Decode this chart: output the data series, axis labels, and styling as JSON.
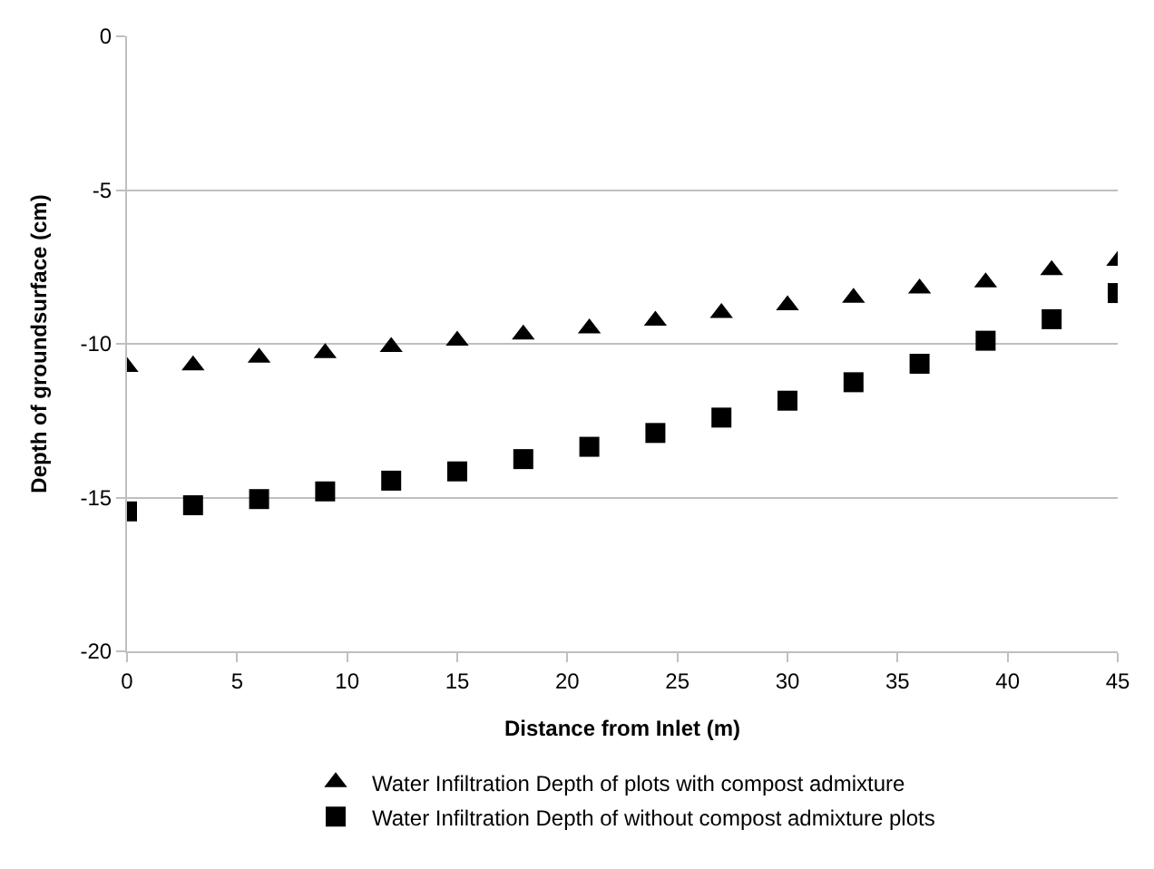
{
  "chart_data": {
    "type": "scatter",
    "xlabel": "Distance from Inlet (m)",
    "ylabel": "Depth of groundsurface (cm)",
    "x": [
      0,
      3,
      6,
      9,
      12,
      15,
      18,
      21,
      24,
      27,
      30,
      33,
      36,
      39,
      42,
      45
    ],
    "series": [
      {
        "name": "Water Infiltration Depth of plots with compost admixture",
        "color": "#000000",
        "marker": "triangle",
        "values": [
          -10.75,
          -10.7,
          -10.45,
          -10.3,
          -10.1,
          -9.9,
          -9.7,
          -9.5,
          -9.25,
          -9.0,
          -8.75,
          -8.5,
          -8.2,
          -8.0,
          -7.6,
          -7.3
        ]
      },
      {
        "name": "Water Infiltration Depth of without compost admixture plots",
        "color": "#000000",
        "marker": "square",
        "values": [
          -15.45,
          -15.25,
          -15.05,
          -14.8,
          -14.45,
          -14.15,
          -13.75,
          -13.35,
          -12.9,
          -12.4,
          -11.85,
          -11.25,
          -10.65,
          -9.9,
          -9.2,
          -8.35
        ]
      }
    ],
    "xlim": [
      0,
      45
    ],
    "xticks": [
      0,
      5,
      10,
      15,
      20,
      25,
      30,
      35,
      40,
      45
    ],
    "ylim": [
      -20,
      0
    ],
    "yticks": [
      0,
      -5,
      -10,
      -15,
      -20
    ],
    "grid": "y",
    "legend": "bottom"
  }
}
